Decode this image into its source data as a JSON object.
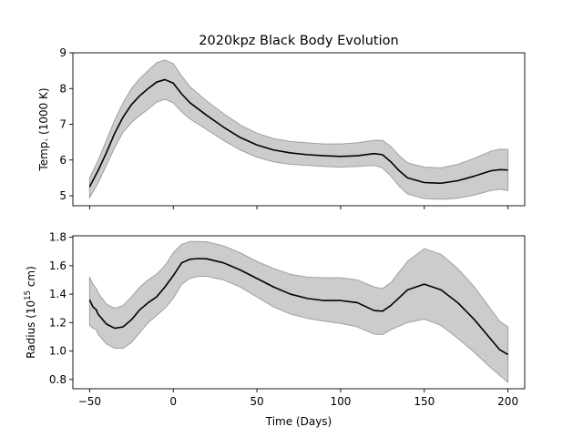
{
  "chart_data": [
    {
      "type": "line",
      "title": "2020kpz Black Body Evolution",
      "xlabel": "",
      "ylabel": "Temp. (1000 K)",
      "xlim": [
        -60,
        210
      ],
      "ylim": [
        4.72,
        9.0
      ],
      "xticks": [
        -50,
        0,
        50,
        100,
        150,
        200
      ],
      "yticks": [
        5,
        6,
        7,
        8,
        9
      ],
      "ytick_labels": [
        "5",
        "6",
        "7",
        "8",
        "9"
      ],
      "x_ticklabels_shown": false,
      "grid": false,
      "band_color": "#cccccc",
      "band_edge_color": "#a0a0a0",
      "line_color": "#000000",
      "series": [
        {
          "x": [
            -50,
            -45,
            -40,
            -35,
            -30,
            -25,
            -20,
            -15,
            -10,
            -5,
            0,
            5,
            10,
            20,
            30,
            40,
            50,
            60,
            70,
            80,
            90,
            100,
            110,
            120,
            125,
            130,
            135,
            140,
            150,
            160,
            170,
            180,
            190,
            195,
            200
          ],
          "y": [
            5.25,
            5.7,
            6.2,
            6.75,
            7.2,
            7.55,
            7.8,
            8.0,
            8.18,
            8.25,
            8.15,
            7.85,
            7.6,
            7.25,
            6.92,
            6.63,
            6.42,
            6.28,
            6.2,
            6.15,
            6.12,
            6.1,
            6.12,
            6.18,
            6.15,
            5.95,
            5.7,
            5.5,
            5.37,
            5.35,
            5.42,
            5.55,
            5.7,
            5.73,
            5.72
          ],
          "lower": [
            4.95,
            5.35,
            5.85,
            6.35,
            6.78,
            7.05,
            7.25,
            7.42,
            7.62,
            7.7,
            7.6,
            7.35,
            7.15,
            6.85,
            6.55,
            6.28,
            6.08,
            5.95,
            5.88,
            5.85,
            5.82,
            5.8,
            5.82,
            5.85,
            5.78,
            5.55,
            5.27,
            5.05,
            4.92,
            4.9,
            4.93,
            5.02,
            5.15,
            5.18,
            5.15
          ],
          "upper": [
            5.5,
            5.98,
            6.55,
            7.12,
            7.6,
            8.0,
            8.28,
            8.5,
            8.72,
            8.8,
            8.7,
            8.35,
            8.05,
            7.65,
            7.3,
            6.98,
            6.75,
            6.6,
            6.52,
            6.48,
            6.45,
            6.45,
            6.48,
            6.55,
            6.55,
            6.38,
            6.12,
            5.92,
            5.8,
            5.78,
            5.88,
            6.05,
            6.25,
            6.3,
            6.3
          ]
        }
      ]
    },
    {
      "type": "line",
      "title": "",
      "xlabel": "Time (Days)",
      "ylabel_main": "Radius (10",
      "ylabel_sup": "15",
      "ylabel_end": " cm)",
      "xlim": [
        -60,
        210
      ],
      "ylim": [
        0.735,
        1.81
      ],
      "xticks": [
        -50,
        0,
        50,
        100,
        150,
        200
      ],
      "xtick_labels": [
        "−50",
        "0",
        "50",
        "100",
        "150",
        "200"
      ],
      "yticks": [
        0.8,
        1.0,
        1.2,
        1.4,
        1.6,
        1.8
      ],
      "ytick_labels": [
        "0.8",
        "1.0",
        "1.2",
        "1.4",
        "1.6",
        "1.8"
      ],
      "grid": false,
      "band_color": "#cccccc",
      "band_edge_color": "#a0a0a0",
      "line_color": "#000000",
      "series": [
        {
          "x": [
            -50,
            -48,
            -46,
            -45,
            -40,
            -35,
            -30,
            -25,
            -20,
            -15,
            -10,
            -5,
            0,
            5,
            10,
            15,
            20,
            30,
            40,
            50,
            60,
            70,
            80,
            90,
            100,
            110,
            120,
            125,
            130,
            140,
            150,
            160,
            170,
            180,
            190,
            195,
            200
          ],
          "y": [
            1.36,
            1.31,
            1.29,
            1.26,
            1.19,
            1.16,
            1.17,
            1.22,
            1.29,
            1.34,
            1.38,
            1.45,
            1.53,
            1.62,
            1.645,
            1.65,
            1.648,
            1.62,
            1.57,
            1.51,
            1.45,
            1.4,
            1.37,
            1.355,
            1.355,
            1.34,
            1.285,
            1.28,
            1.32,
            1.43,
            1.47,
            1.43,
            1.34,
            1.22,
            1.08,
            1.01,
            0.975
          ],
          "lower": [
            1.18,
            1.16,
            1.15,
            1.12,
            1.05,
            1.02,
            1.02,
            1.06,
            1.13,
            1.2,
            1.25,
            1.3,
            1.37,
            1.47,
            1.51,
            1.525,
            1.525,
            1.5,
            1.45,
            1.38,
            1.31,
            1.26,
            1.23,
            1.21,
            1.195,
            1.17,
            1.12,
            1.115,
            1.15,
            1.2,
            1.225,
            1.18,
            1.09,
            0.99,
            0.88,
            0.83,
            0.78
          ],
          "upper": [
            1.52,
            1.47,
            1.44,
            1.41,
            1.33,
            1.3,
            1.32,
            1.38,
            1.45,
            1.5,
            1.54,
            1.6,
            1.69,
            1.75,
            1.77,
            1.77,
            1.768,
            1.74,
            1.69,
            1.63,
            1.58,
            1.54,
            1.52,
            1.515,
            1.515,
            1.5,
            1.45,
            1.44,
            1.48,
            1.63,
            1.72,
            1.68,
            1.58,
            1.45,
            1.29,
            1.21,
            1.17
          ]
        }
      ]
    }
  ]
}
